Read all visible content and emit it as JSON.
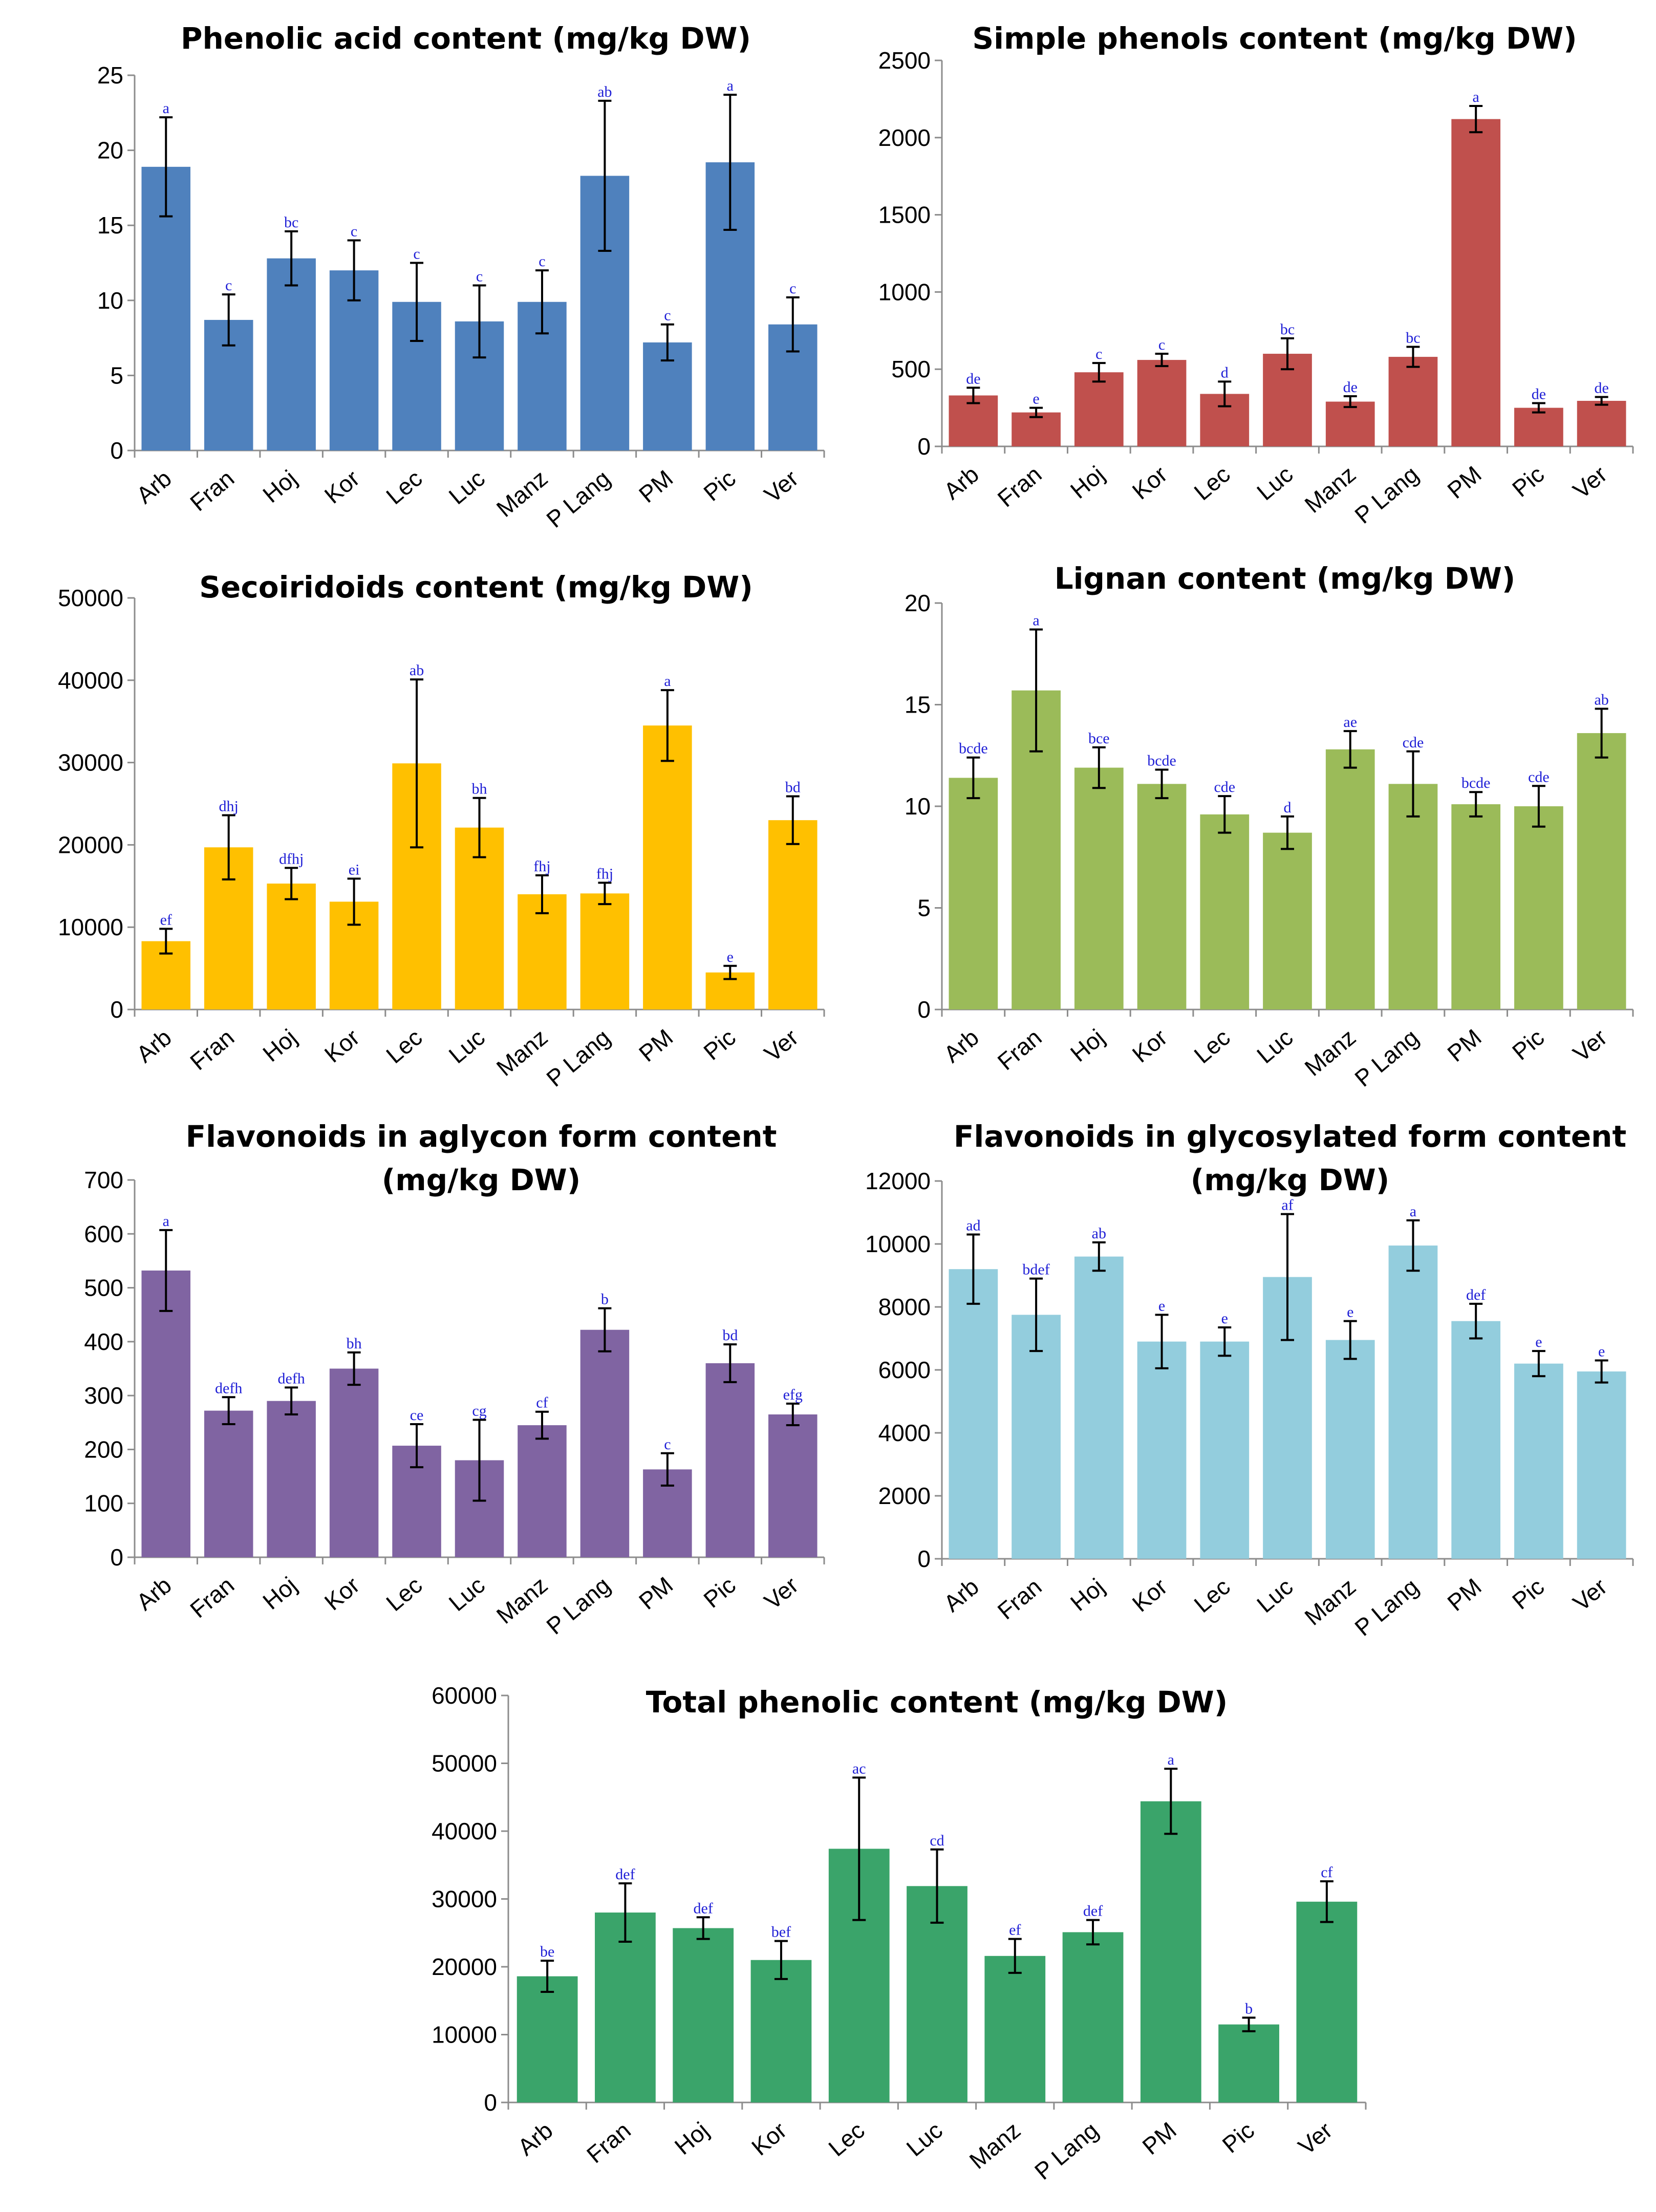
{
  "categories": [
    "Arb",
    "Fran",
    "Hoj",
    "Kor",
    "Lec",
    "Luc",
    "Manz",
    "P Lang",
    "PM",
    "Pic",
    "Ver"
  ],
  "chart_data": [
    {
      "id": "phenolic-acid",
      "type": "bar",
      "title": [
        "Phenolic acid content (mg/kg DW)"
      ],
      "color": "#4f81bd",
      "ylim": [
        0,
        25
      ],
      "yticks": [
        0,
        5,
        10,
        15,
        20,
        25
      ],
      "values": [
        18.9,
        8.7,
        12.8,
        12.0,
        9.9,
        8.6,
        9.9,
        18.3,
        7.2,
        19.2,
        8.4
      ],
      "errors": [
        3.3,
        1.7,
        1.8,
        2.0,
        2.6,
        2.4,
        2.1,
        5.0,
        1.2,
        4.5,
        1.8
      ],
      "letters": [
        "a",
        "c",
        "bc",
        "c",
        "c",
        "c",
        "c",
        "ab",
        "c",
        "a",
        "c"
      ],
      "xlabel": "",
      "ylabel": ""
    },
    {
      "id": "simple-phenols",
      "type": "bar",
      "title": [
        "Simple phenols content (mg/kg DW)"
      ],
      "color": "#c0504d",
      "ylim": [
        0,
        2500
      ],
      "yticks": [
        0,
        500,
        1000,
        1500,
        2000,
        2500
      ],
      "values": [
        330,
        220,
        480,
        560,
        340,
        600,
        290,
        580,
        2120,
        250,
        295
      ],
      "errors": [
        50,
        30,
        60,
        40,
        80,
        100,
        35,
        65,
        85,
        30,
        25
      ],
      "letters": [
        "de",
        "e",
        "c",
        "c",
        "d",
        "bc",
        "de",
        "bc",
        "a",
        "de",
        "de"
      ],
      "xlabel": "",
      "ylabel": ""
    },
    {
      "id": "secoiridoids",
      "type": "bar",
      "title": [
        "Secoiridoids content (mg/kg DW)"
      ],
      "color": "#ffc000",
      "ylim": [
        0,
        50000
      ],
      "yticks": [
        0,
        10000,
        20000,
        30000,
        40000,
        50000
      ],
      "values": [
        8300,
        19700,
        15300,
        13100,
        29900,
        22100,
        14000,
        14100,
        34500,
        4500,
        23000
      ],
      "errors": [
        1500,
        3900,
        1900,
        2800,
        10200,
        3600,
        2300,
        1300,
        4300,
        800,
        2900
      ],
      "letters": [
        "ef",
        "dhj",
        "dfhj",
        "ei",
        "ab",
        "bh",
        "fhj",
        "fhj",
        "a",
        "e",
        "bd"
      ],
      "xlabel": "",
      "ylabel": ""
    },
    {
      "id": "lignan",
      "type": "bar",
      "title": [
        "Lignan content (mg/kg DW)"
      ],
      "color": "#9bbb59",
      "ylim": [
        0,
        20
      ],
      "yticks": [
        0,
        5,
        10,
        15,
        20
      ],
      "values": [
        11.4,
        15.7,
        11.9,
        11.1,
        9.6,
        8.7,
        12.8,
        11.1,
        10.1,
        10.0,
        13.6
      ],
      "errors": [
        1.0,
        3.0,
        1.0,
        0.7,
        0.9,
        0.8,
        0.9,
        1.6,
        0.6,
        1.0,
        1.2
      ],
      "letters": [
        "bcde",
        "a",
        "bce",
        "bcde",
        "cde",
        "d",
        "ae",
        "cde",
        "bcde",
        "cde",
        "ab"
      ],
      "xlabel": "",
      "ylabel": ""
    },
    {
      "id": "flavonoids-aglycon",
      "type": "bar",
      "title": [
        "Flavonoids in aglycon form content",
        "(mg/kg DW)"
      ],
      "color": "#8064a2",
      "ylim": [
        0,
        700
      ],
      "yticks": [
        0,
        100,
        200,
        300,
        400,
        500,
        600,
        700
      ],
      "values": [
        532,
        272,
        290,
        350,
        207,
        180,
        245,
        422,
        163,
        360,
        265
      ],
      "errors": [
        75,
        25,
        25,
        30,
        40,
        75,
        25,
        40,
        30,
        35,
        20
      ],
      "letters": [
        "a",
        "defh",
        "defh",
        "bh",
        "ce",
        "cg",
        "cf",
        "b",
        "c",
        "bd",
        "efg"
      ],
      "xlabel": "",
      "ylabel": ""
    },
    {
      "id": "flavonoids-glycosylated",
      "type": "bar",
      "title": [
        "Flavonoids in  glycosylated form content",
        "(mg/kg DW)"
      ],
      "color": "#93cddd",
      "ylim": [
        0,
        12000
      ],
      "yticks": [
        0,
        2000,
        4000,
        6000,
        8000,
        10000,
        12000
      ],
      "values": [
        9200,
        7750,
        9600,
        6900,
        6900,
        8950,
        6950,
        9950,
        7550,
        6200,
        5950
      ],
      "errors": [
        1100,
        1150,
        450,
        850,
        450,
        2000,
        600,
        800,
        550,
        400,
        350
      ],
      "letters": [
        "ad",
        "bdef",
        "ab",
        "e",
        "e",
        "af",
        "e",
        "a",
        "def",
        "e",
        "e"
      ],
      "xlabel": "",
      "ylabel": ""
    },
    {
      "id": "total-phenolic",
      "type": "bar",
      "title": [
        "Total phenolic content (mg/kg DW)"
      ],
      "color": "#3aa46a",
      "ylim": [
        0,
        60000
      ],
      "yticks": [
        0,
        10000,
        20000,
        30000,
        40000,
        50000,
        60000
      ],
      "values": [
        18600,
        28000,
        25700,
        21000,
        37400,
        31900,
        21600,
        25100,
        44400,
        11500,
        29600
      ],
      "errors": [
        2300,
        4300,
        1600,
        2800,
        10500,
        5400,
        2500,
        1800,
        4800,
        1000,
        3000
      ],
      "letters": [
        "be",
        "def",
        "def",
        "bef",
        "ac",
        "cd",
        "ef",
        "def",
        "a",
        "b",
        "cf"
      ],
      "xlabel": "",
      "ylabel": ""
    }
  ]
}
